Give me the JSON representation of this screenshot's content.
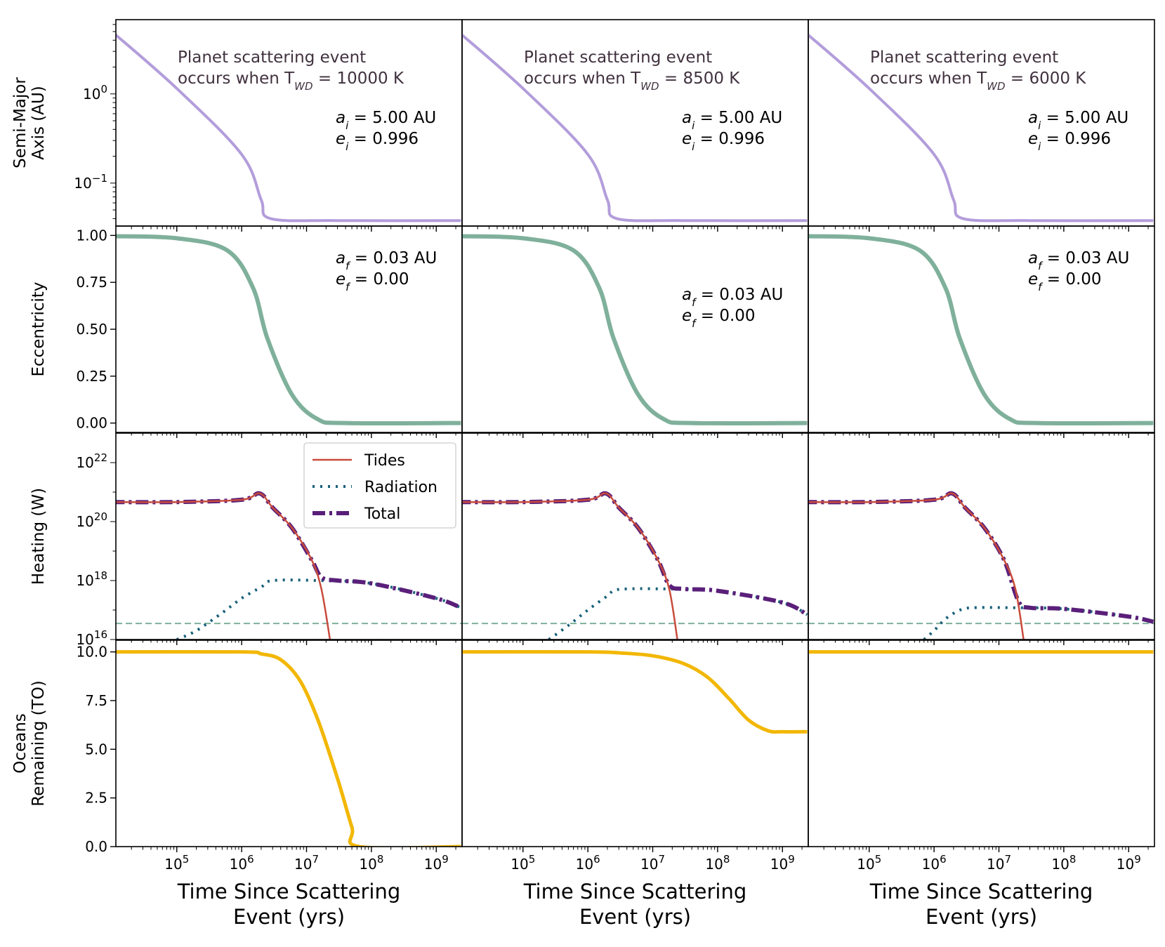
{
  "figure": {
    "columns": [
      {
        "title_line1": "Planet scattering event",
        "title_line2_prefix": "occurs when T",
        "title_line2_sub": "WD",
        "title_line2_suffix": " = 10000 K"
      },
      {
        "title_line1": "Planet scattering event",
        "title_line2_prefix": "occurs when T",
        "title_line2_sub": "WD",
        "title_line2_suffix": " = 8500 K"
      },
      {
        "title_line1": "Planet scattering event",
        "title_line2_prefix": "occurs when T",
        "title_line2_sub": "WD",
        "title_line2_suffix": " = 6000 K"
      }
    ],
    "row_ylabels": [
      [
        "Semi-Major",
        "Axis (AU)"
      ],
      [
        "Eccentricity"
      ],
      [
        "Heating (W)"
      ],
      [
        "Oceans",
        "Remaining (TO)"
      ]
    ],
    "xlabel_lines": [
      "Time Since Scattering",
      "Event (yrs)"
    ],
    "initial_orbit": {
      "a_label": "a",
      "a_sub": "i",
      "a_value": " =  5.00 AU",
      "e_label": "e",
      "e_sub": "i",
      "e_value": " =  0.996"
    },
    "final_orbit": {
      "a_label": "a",
      "a_sub": "f",
      "a_value": " =  0.03 AU",
      "e_label": "e",
      "e_sub": "f",
      "e_value": " =  0.00"
    },
    "legend": [
      "Tides",
      "Radiation",
      "Total"
    ],
    "colors": {
      "semi_major": "#b39ddb",
      "eccentricity": "#7fb09b",
      "tides": "#c84b3c",
      "radiation": "#17607a",
      "total": "#5a1f7a",
      "threshold": "#7fb09b",
      "oceans": "#f2b705"
    }
  },
  "chart_data": [
    {
      "type": "line",
      "title": "Planet scattering event occurs when T_WD = 10000 K",
      "xlabel": "Time Since Scattering Event (yrs)",
      "x_scale": "log",
      "x_ticks": [
        "10^5",
        "10^6",
        "10^7",
        "10^8",
        "10^9"
      ],
      "panels": [
        {
          "ylabel": "Semi-Major Axis (AU)",
          "y_scale": "log",
          "ylim": [
            0.033,
            6.8
          ],
          "yticks": [
            "10^0",
            "10^-1"
          ],
          "series": [
            {
              "x": [
                10000.0,
                100000.0,
                1000000.0,
                2000000.0,
                2800000.0,
                30000000.0,
                2400000000.0
              ],
              "y": [
                5.0,
                1.15,
                0.21,
                0.065,
                0.04,
                0.038,
                0.038
              ]
            }
          ],
          "annotation": {
            "a_i": "5.00 AU",
            "e_i": "0.996"
          }
        },
        {
          "ylabel": "Eccentricity",
          "ylim": [
            -0.05,
            1.05
          ],
          "yticks": [
            0.0,
            0.25,
            0.5,
            0.75,
            1.0
          ],
          "series": [
            {
              "x": [
                10000.0,
                100000.0,
                600000.0,
                1500000.0,
                2500000.0,
                6000000.0,
                15000000.0,
                40000000.0,
                2400000000.0
              ],
              "y": [
                0.996,
                0.985,
                0.92,
                0.72,
                0.45,
                0.15,
                0.02,
                0.0,
                0.0
              ]
            }
          ],
          "annotation": {
            "a_f": "0.03 AU",
            "e_f": "0.00"
          }
        },
        {
          "ylabel": "Heating (W)",
          "y_scale": "log",
          "ylim": [
            1e+16,
            1e+23
          ],
          "yticks": [
            "10^16",
            "10^18",
            "10^20",
            "10^22"
          ],
          "series": [
            {
              "name": "Tides",
              "x": [
                10000.0,
                100000.0,
                1000000.0,
                1900000.0,
                3000000.0,
                6000000.0,
                12000000.0,
                17000000.0,
                23000000.0
              ],
              "y": [
                4.6e+20,
                4.6e+20,
                5.5e+20,
                9e+20,
                3e+20,
                6e+19,
                5e+18,
                5e+17,
                1e+16
              ]
            },
            {
              "name": "Radiation",
              "x": [
                100000.0,
                200000.0,
                500000.0,
                1000000.0,
                2000000.0,
                3000000.0,
                15000000.0,
                100000000.0,
                1000000000.0,
                2400000000.0
              ],
              "y": [
                1e+16,
                2e+16,
                8e+16,
                2.5e+17,
                6e+17,
                1e+18,
                1e+18,
                8e+17,
                2.5e+17,
                1.2e+17
              ]
            },
            {
              "name": "Total",
              "x": [
                10000.0,
                100000.0,
                1000000.0,
                1900000.0,
                3000000.0,
                6000000.0,
                12000000.0,
                17000000.0,
                30000000.0,
                100000000.0,
                1000000000.0,
                2400000000.0
              ],
              "y": [
                4.6e+20,
                4.6e+20,
                5.5e+20,
                9e+20,
                3e+20,
                6e+19,
                5e+18,
                1.3e+18,
                1e+18,
                8e+17,
                2.5e+17,
                1.2e+17
              ]
            }
          ],
          "threshold": 3.5e+16
        },
        {
          "ylabel": "Oceans Remaining (TO)",
          "ylim": [
            0,
            10.6
          ],
          "yticks": [
            0.0,
            2.5,
            5.0,
            7.5,
            10.0
          ],
          "series": [
            {
              "x": [
                10000.0,
                1000000.0,
                2000000.0,
                4000000.0,
                8000000.0,
                15000000.0,
                30000000.0,
                50000000.0,
                65000000.0,
                2400000000.0
              ],
              "y": [
                10.0,
                10.0,
                9.9,
                9.6,
                8.5,
                6.5,
                3.5,
                1.0,
                0.0,
                0.0
              ]
            }
          ]
        }
      ]
    },
    {
      "type": "line",
      "title": "Planet scattering event occurs when T_WD = 8500 K",
      "xlabel": "Time Since Scattering Event (yrs)",
      "x_scale": "log",
      "x_ticks": [
        "10^5",
        "10^6",
        "10^7",
        "10^8",
        "10^9"
      ],
      "panels": [
        {
          "ylabel": "Semi-Major Axis (AU)",
          "y_scale": "log",
          "ylim": [
            0.033,
            6.8
          ],
          "series": [
            {
              "x": [
                10000.0,
                100000.0,
                1000000.0,
                2000000.0,
                2800000.0,
                30000000.0,
                2400000000.0
              ],
              "y": [
                5.0,
                1.15,
                0.21,
                0.065,
                0.04,
                0.038,
                0.038
              ]
            }
          ],
          "annotation": {
            "a_i": "5.00 AU",
            "e_i": "0.996"
          }
        },
        {
          "ylabel": "Eccentricity",
          "ylim": [
            -0.05,
            1.05
          ],
          "series": [
            {
              "x": [
                10000.0,
                100000.0,
                600000.0,
                1500000.0,
                2500000.0,
                6000000.0,
                15000000.0,
                40000000.0,
                2400000000.0
              ],
              "y": [
                0.996,
                0.985,
                0.92,
                0.72,
                0.45,
                0.15,
                0.02,
                0.0,
                0.0
              ]
            }
          ],
          "annotation": {
            "a_f": "0.03 AU",
            "e_f": "0.00"
          }
        },
        {
          "ylabel": "Heating (W)",
          "y_scale": "log",
          "ylim": [
            1e+16,
            1e+23
          ],
          "series": [
            {
              "name": "Tides",
              "x": [
                10000.0,
                100000.0,
                1000000.0,
                1900000.0,
                3000000.0,
                6000000.0,
                12000000.0,
                18000000.0,
                24000000.0
              ],
              "y": [
                4.6e+20,
                4.6e+20,
                5.5e+20,
                9e+20,
                3e+20,
                6e+19,
                5e+18,
                5e+17,
                1e+16
              ]
            },
            {
              "name": "Radiation",
              "x": [
                250000.0,
                500000.0,
                1000000.0,
                2000000.0,
                3000000.0,
                15000000.0,
                100000000.0,
                1000000000.0,
                2400000000.0
              ],
              "y": [
                1e+16,
                3e+16,
                1e+17,
                3e+17,
                5e+17,
                5.2e+17,
                4.5e+17,
                1.8e+17,
                7e+16
              ]
            },
            {
              "name": "Total",
              "x": [
                10000.0,
                100000.0,
                1000000.0,
                1900000.0,
                3000000.0,
                6000000.0,
                12000000.0,
                18000000.0,
                30000000.0,
                100000000.0,
                1000000000.0,
                2400000000.0
              ],
              "y": [
                4.6e+20,
                4.6e+20,
                5.5e+20,
                9e+20,
                3e+20,
                6e+19,
                5e+18,
                7e+17,
                5.2e+17,
                4.5e+17,
                1.8e+17,
                7e+16
              ]
            }
          ],
          "threshold": 3.5e+16
        },
        {
          "ylabel": "Oceans Remaining (TO)",
          "ylim": [
            0,
            10.6
          ],
          "series": [
            {
              "x": [
                10000.0,
                1000000.0,
                3000000.0,
                10000000.0,
                30000000.0,
                70000000.0,
                150000000.0,
                300000000.0,
                600000000.0,
                1000000000.0,
                2400000000.0
              ],
              "y": [
                10.0,
                10.0,
                9.95,
                9.8,
                9.4,
                8.7,
                7.6,
                6.5,
                5.95,
                5.9,
                5.9
              ]
            }
          ]
        }
      ]
    },
    {
      "type": "line",
      "title": "Planet scattering event occurs when T_WD = 6000 K",
      "xlabel": "Time Since Scattering Event (yrs)",
      "x_scale": "log",
      "x_ticks": [
        "10^5",
        "10^6",
        "10^7",
        "10^8",
        "10^9"
      ],
      "panels": [
        {
          "ylabel": "Semi-Major Axis (AU)",
          "y_scale": "log",
          "ylim": [
            0.033,
            6.8
          ],
          "series": [
            {
              "x": [
                10000.0,
                100000.0,
                1000000.0,
                2000000.0,
                2800000.0,
                30000000.0,
                2400000000.0
              ],
              "y": [
                5.0,
                1.15,
                0.21,
                0.065,
                0.04,
                0.038,
                0.038
              ]
            }
          ],
          "annotation": {
            "a_i": "5.00 AU",
            "e_i": "0.996"
          }
        },
        {
          "ylabel": "Eccentricity",
          "ylim": [
            -0.05,
            1.05
          ],
          "series": [
            {
              "x": [
                10000.0,
                100000.0,
                600000.0,
                1500000.0,
                2500000.0,
                6000000.0,
                15000000.0,
                40000000.0,
                2400000000.0
              ],
              "y": [
                0.996,
                0.985,
                0.92,
                0.72,
                0.45,
                0.15,
                0.02,
                0.0,
                0.0
              ]
            }
          ],
          "annotation": {
            "a_f": "0.03 AU",
            "e_f": "0.00"
          }
        },
        {
          "ylabel": "Heating (W)",
          "y_scale": "log",
          "ylim": [
            1e+16,
            1e+23
          ],
          "series": [
            {
              "name": "Tides",
              "x": [
                10000.0,
                100000.0,
                1000000.0,
                1900000.0,
                3000000.0,
                6000000.0,
                12000000.0,
                18000000.0,
                24000000.0
              ],
              "y": [
                4.6e+20,
                4.6e+20,
                5.5e+20,
                9e+20,
                3e+20,
                6e+19,
                5e+18,
                5e+17,
                1e+16
              ]
            },
            {
              "name": "Radiation",
              "x": [
                700000.0,
                1000000.0,
                1500000.0,
                2500000.0,
                4000000.0,
                15000000.0,
                100000000.0,
                1000000000.0,
                2400000000.0
              ],
              "y": [
                1e+16,
                2e+16,
                5e+16,
                1e+17,
                1.2e+17,
                1.2e+17,
                1.1e+17,
                6e+16,
                4e+16
              ]
            },
            {
              "name": "Total",
              "x": [
                10000.0,
                100000.0,
                1000000.0,
                1900000.0,
                3000000.0,
                6000000.0,
                12000000.0,
                20000000.0,
                30000000.0,
                100000000.0,
                1000000000.0,
                2400000000.0
              ],
              "y": [
                4.6e+20,
                4.6e+20,
                5.5e+20,
                9e+20,
                3e+20,
                6e+19,
                5e+18,
                2e+17,
                1.2e+17,
                1.1e+17,
                6e+16,
                4e+16
              ]
            }
          ],
          "threshold": 3.5e+16
        },
        {
          "ylabel": "Oceans Remaining (TO)",
          "ylim": [
            0,
            10.6
          ],
          "series": [
            {
              "x": [
                10000.0,
                2400000000.0
              ],
              "y": [
                10.0,
                10.0
              ]
            }
          ]
        }
      ]
    }
  ]
}
